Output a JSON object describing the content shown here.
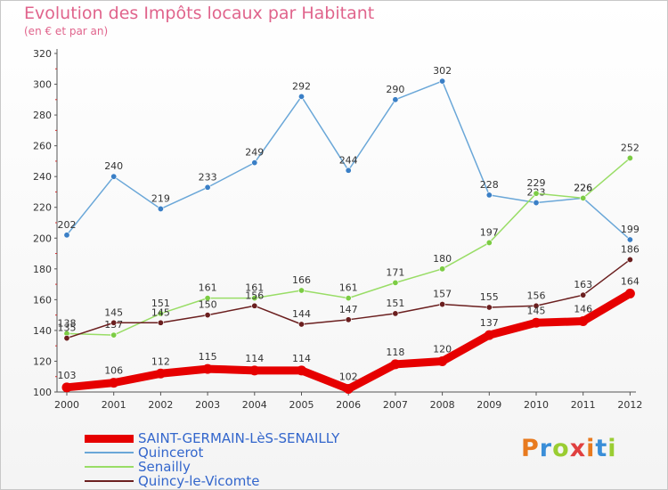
{
  "title": "Evolution des Impôts locaux par Habitant",
  "subtitle": "(en € et par an)",
  "logo": {
    "text": "Proxiti",
    "letter_colors": [
      "#e87a1e",
      "#3a8ed8",
      "#9acd32",
      "#e04040",
      "#e87a1e",
      "#3a8ed8",
      "#9acd32"
    ]
  },
  "chart_data": {
    "type": "line",
    "title": "Evolution des Impôts locaux par Habitant",
    "subtitle": "(en € et par an)",
    "xlabel": "",
    "ylabel": "",
    "x": [
      "2000",
      "2001",
      "2002",
      "2003",
      "2004",
      "2005",
      "2006",
      "2007",
      "2008",
      "2009",
      "2010",
      "2011",
      "2012"
    ],
    "ylim": [
      100,
      320
    ],
    "yticks": [
      100,
      120,
      140,
      160,
      180,
      200,
      220,
      240,
      260,
      280,
      300,
      320
    ],
    "grid": false,
    "legend_position": "bottom-left",
    "series": [
      {
        "name": "SAINT-GERMAIN-LèS-SENAILLY",
        "color": "#e60000",
        "marker_color": "#e60000",
        "style": "thick",
        "values": [
          103,
          106,
          112,
          115,
          114,
          114,
          102,
          118,
          120,
          137,
          145,
          146,
          164
        ]
      },
      {
        "name": "Quincerot",
        "color": "#6aa7d8",
        "marker_color": "#3a7fc6",
        "style": "thin",
        "values": [
          202,
          240,
          219,
          233,
          249,
          292,
          244,
          290,
          302,
          228,
          223,
          226,
          199
        ]
      },
      {
        "name": "Senailly",
        "color": "#99dd66",
        "marker_color": "#7ccc44",
        "style": "thin",
        "values": [
          138,
          137,
          151,
          161,
          161,
          166,
          161,
          171,
          180,
          197,
          229,
          226,
          252
        ]
      },
      {
        "name": "Quincy-le-Vicomte",
        "color": "#6b1f1f",
        "marker_color": "#6b1f1f",
        "style": "thin",
        "values": [
          135,
          145,
          145,
          150,
          156,
          144,
          147,
          151,
          157,
          155,
          156,
          163,
          186
        ]
      }
    ]
  }
}
